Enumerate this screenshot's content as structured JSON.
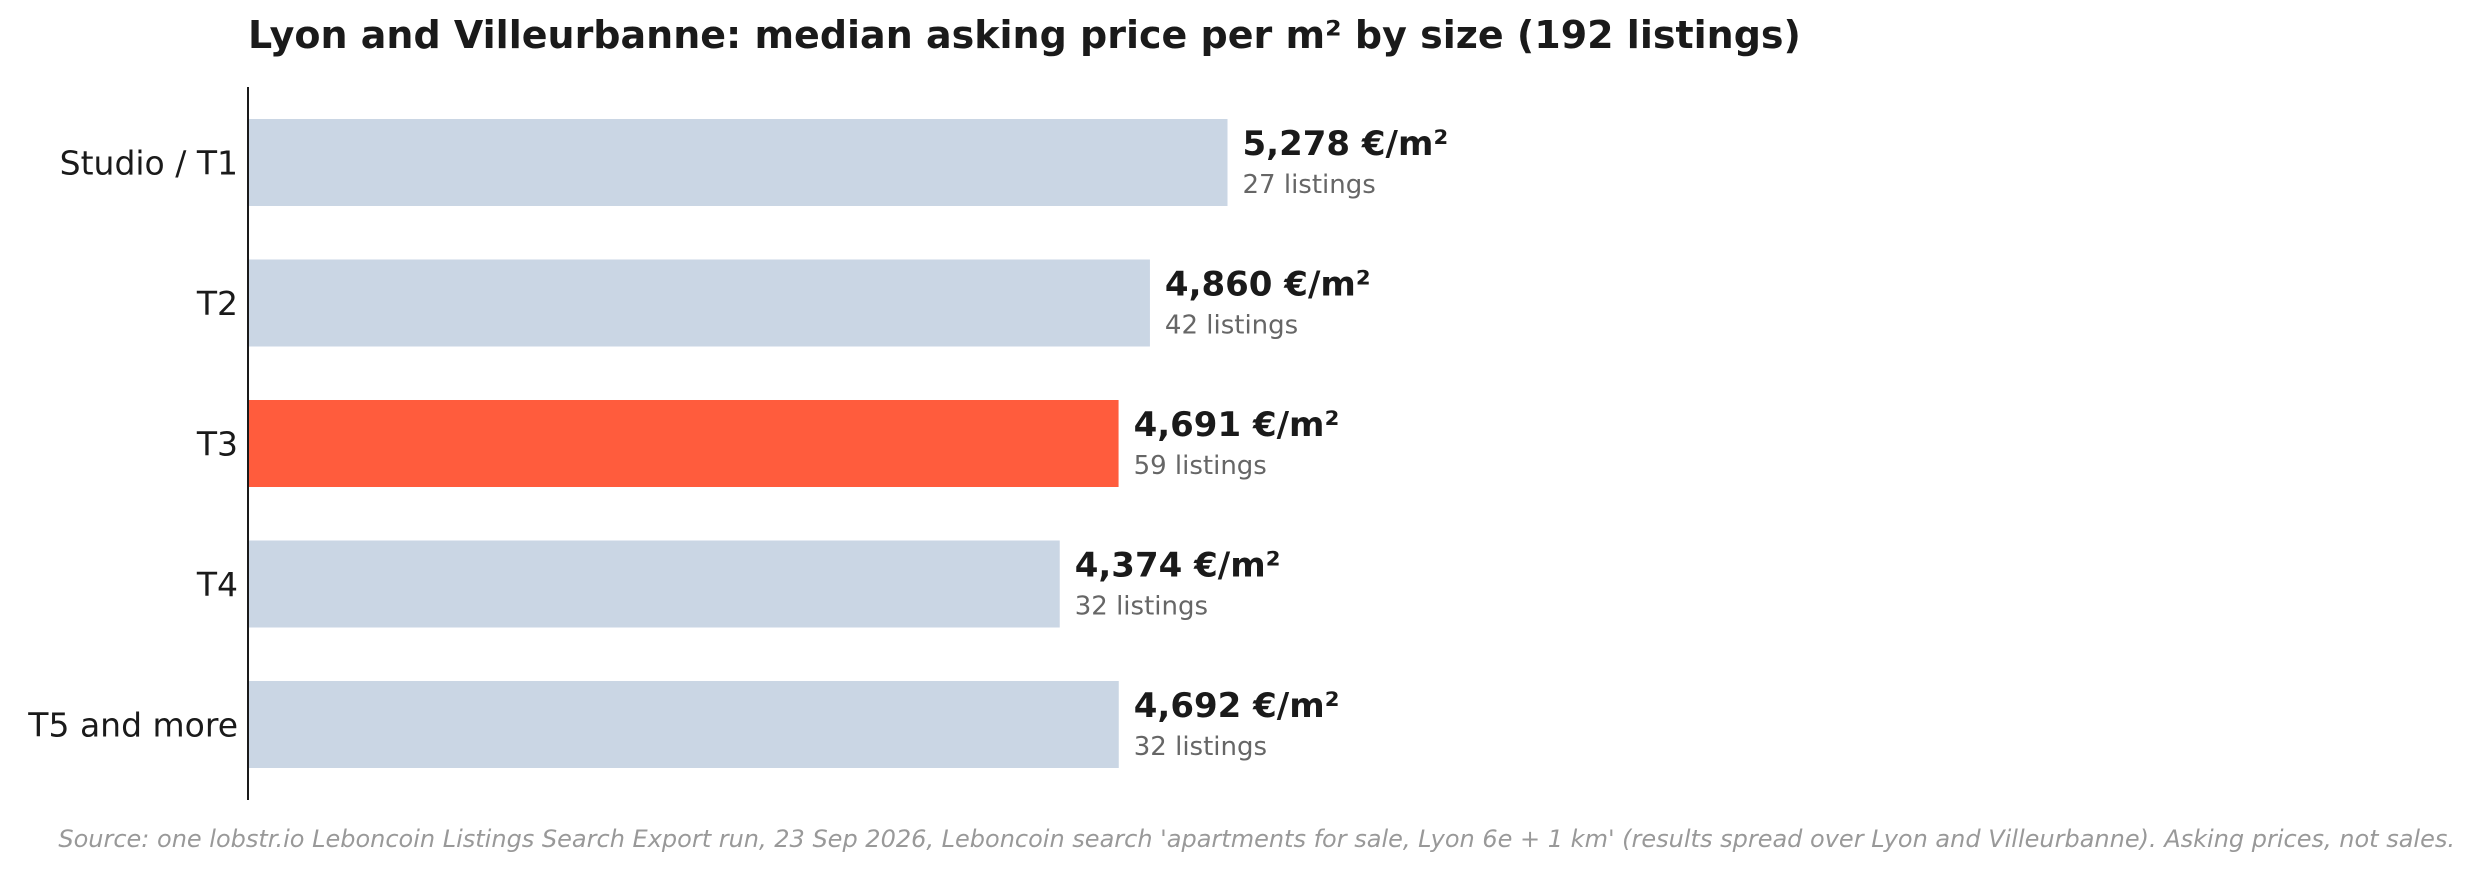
{
  "chart_data": {
    "type": "bar",
    "orientation": "horizontal",
    "title": "Lyon and Villeurbanne: median asking price per m² by size (192 listings)",
    "categories": [
      "Studio / T1",
      "T2",
      "T3",
      "T4",
      "T5 and more"
    ],
    "values": [
      5278,
      4860,
      4691,
      4374,
      4692
    ],
    "value_labels": [
      "5,278 €/m²",
      "4,860 €/m²",
      "4,691 €/m²",
      "4,374 €/m²",
      "4,692 €/m²"
    ],
    "listing_counts": [
      27,
      42,
      59,
      32,
      32
    ],
    "count_labels": [
      "27 listings",
      "42 listings",
      "59 listings",
      "32 listings",
      "32 listings"
    ],
    "highlight_index": 2,
    "xlim": [
      0,
      12000
    ],
    "grid": false,
    "legend": "none",
    "xlabel": "",
    "ylabel": "",
    "source": "Source: one lobstr.io Leboncoin Listings Search Export run, 23 Sep 2026, Leboncoin search 'apartments for sale, Lyon 6e + 1 km' (results spread over Lyon and Villeurbanne). Asking prices, not sales."
  },
  "colors": {
    "bar_default": "#cad6e4",
    "bar_highlight": "#ff5c3d",
    "axis_line": "#1a1a1a",
    "text_main": "#1a1a1a",
    "text_muted": "#666666",
    "text_source": "#999999"
  }
}
